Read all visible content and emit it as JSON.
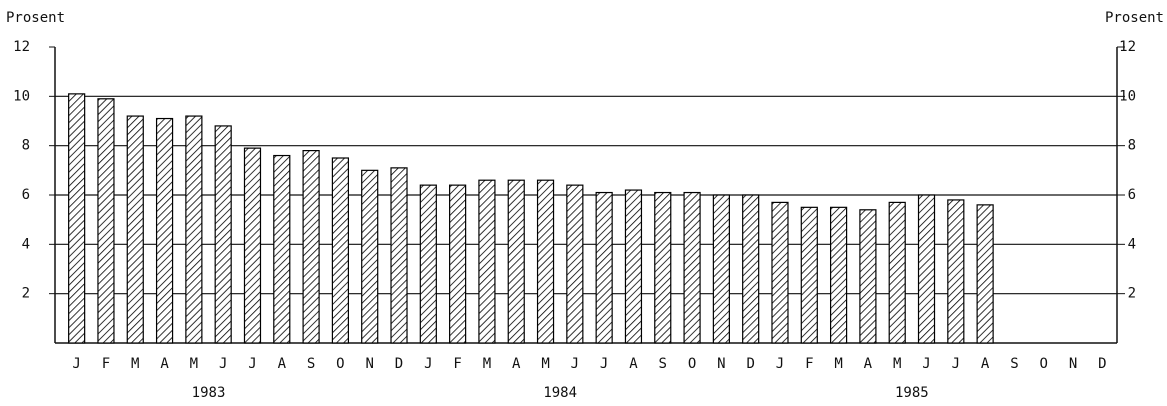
{
  "chart_data": {
    "type": "bar",
    "ylabel": "Prosent",
    "y2label": "Prosent",
    "categories": [
      "J",
      "F",
      "M",
      "A",
      "M",
      "J",
      "J",
      "A",
      "S",
      "O",
      "N",
      "D",
      "J",
      "F",
      "M",
      "A",
      "M",
      "J",
      "J",
      "A",
      "S",
      "O",
      "N",
      "D",
      "J",
      "F",
      "M",
      "A",
      "M",
      "J",
      "J",
      "A",
      "S",
      "O",
      "N",
      "D"
    ],
    "years": [
      "1983",
      "1984",
      "1985"
    ],
    "values": [
      10.1,
      9.9,
      9.2,
      9.1,
      9.2,
      8.8,
      7.9,
      7.6,
      7.8,
      7.5,
      7.0,
      7.1,
      6.4,
      6.4,
      6.6,
      6.6,
      6.6,
      6.4,
      6.1,
      6.2,
      6.1,
      6.1,
      6.0,
      6.0,
      5.7,
      5.5,
      5.5,
      5.4,
      5.7,
      6.0,
      5.8,
      5.6,
      null,
      null,
      null,
      null
    ],
    "color": "#000000",
    "ylim": [
      0,
      12
    ],
    "yticks": [
      2,
      4,
      6,
      8,
      10,
      12
    ],
    "y2lim": [
      0,
      12
    ],
    "y2ticks": [
      2,
      4,
      6,
      8,
      10,
      12
    ],
    "grid": true
  }
}
